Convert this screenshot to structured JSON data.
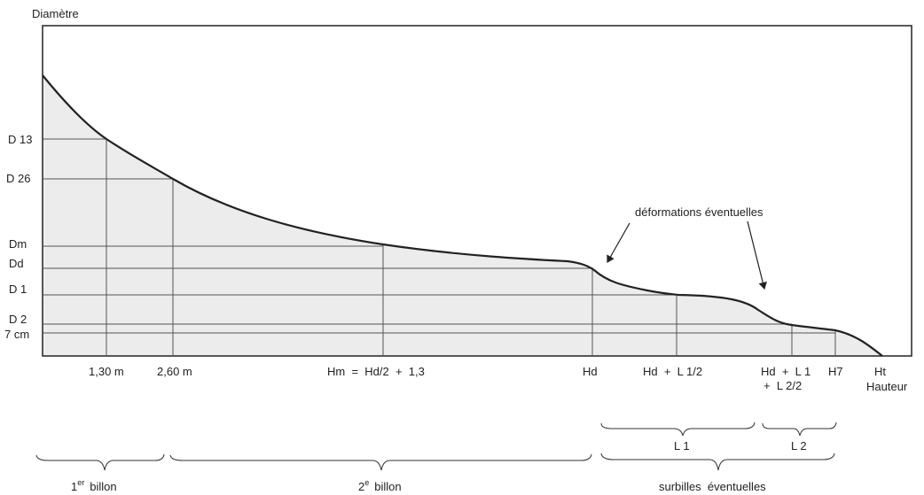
{
  "y_axis_label": "Diamètre",
  "x_axis_label": "Hauteur",
  "y_labels": {
    "d13": "D 13",
    "d26": "D 26",
    "dm": "Dm",
    "dd": "Dd",
    "d1": "D 1",
    "d2": "D 2",
    "cm7": "7 cm"
  },
  "x_labels": {
    "h130": "1,30 m",
    "h260": "2,60 m",
    "hm": "Hm  =  Hd/2  +  1,3",
    "hd": "Hd",
    "hdl1": "Hd  +  L 1/2",
    "hdl2_a": "Hd  +  L 1",
    "hdl2_b": "+  L 2/2",
    "h7": "H7",
    "ht": "Ht"
  },
  "annotation": "déformations  éventuelles",
  "braces": {
    "l1": "L 1",
    "l2": "L 2",
    "billon1_num": "1",
    "billon1_sup": "er",
    "billon1_word": "billon",
    "billon2_num": "2",
    "billon2_sup": "e",
    "billon2_word": "billon",
    "surbilles": "surbilles  éventuelles"
  },
  "colors": {
    "fill": "#ececec",
    "line": "#222222"
  }
}
